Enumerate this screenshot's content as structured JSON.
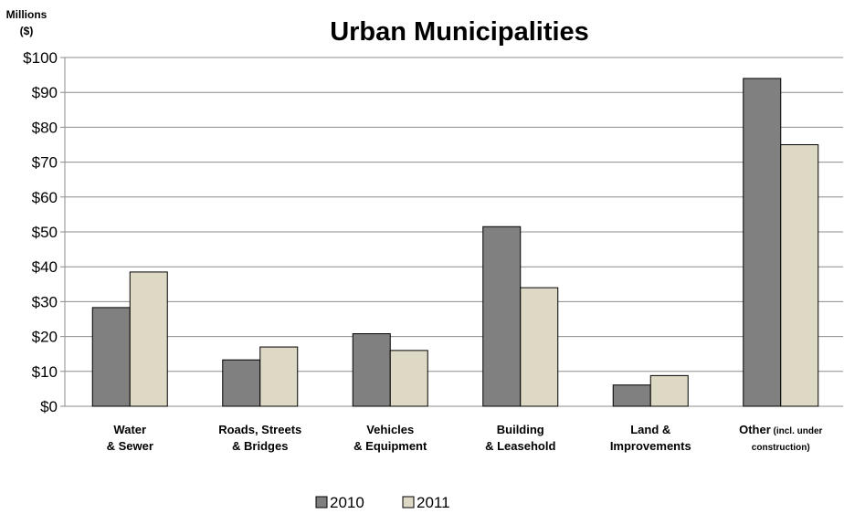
{
  "chart_data": {
    "type": "bar",
    "title": "Urban Municipalities",
    "unit_label": [
      "Millions",
      "($)"
    ],
    "ylim": [
      0,
      100
    ],
    "yticks": [
      "$0",
      "$10",
      "$20",
      "$30",
      "$40",
      "$50",
      "$60",
      "$70",
      "$80",
      "$90",
      "$100"
    ],
    "ytick_values": [
      0,
      10,
      20,
      30,
      40,
      50,
      60,
      70,
      80,
      90,
      100
    ],
    "categories": [
      {
        "lines": [
          {
            "text": "Water"
          },
          {
            "text": "& Sewer"
          }
        ]
      },
      {
        "lines": [
          {
            "text": "Roads, Streets"
          },
          {
            "text": "& Bridges"
          }
        ]
      },
      {
        "lines": [
          {
            "text": "Vehicles"
          },
          {
            "text": "& Equipment"
          }
        ]
      },
      {
        "lines": [
          {
            "text": "Building"
          },
          {
            "text": "& Leasehold"
          }
        ]
      },
      {
        "lines": [
          {
            "text": "Land &"
          },
          {
            "text": "Improvements"
          }
        ]
      },
      {
        "lines": [
          {
            "text": "Other",
            "small": " (incl. under"
          },
          {
            "text": "construction)",
            "smallLine": true
          }
        ]
      }
    ],
    "series": [
      {
        "name": "2010",
        "values": [
          28.3,
          13.3,
          20.8,
          51.5,
          6.1,
          94.0
        ],
        "color": "#808080"
      },
      {
        "name": "2011",
        "values": [
          38.5,
          17.0,
          16.0,
          34.0,
          8.8,
          75.0
        ],
        "color": "#ddd9c4"
      }
    ],
    "legend_position": "bottom",
    "grid": true
  }
}
